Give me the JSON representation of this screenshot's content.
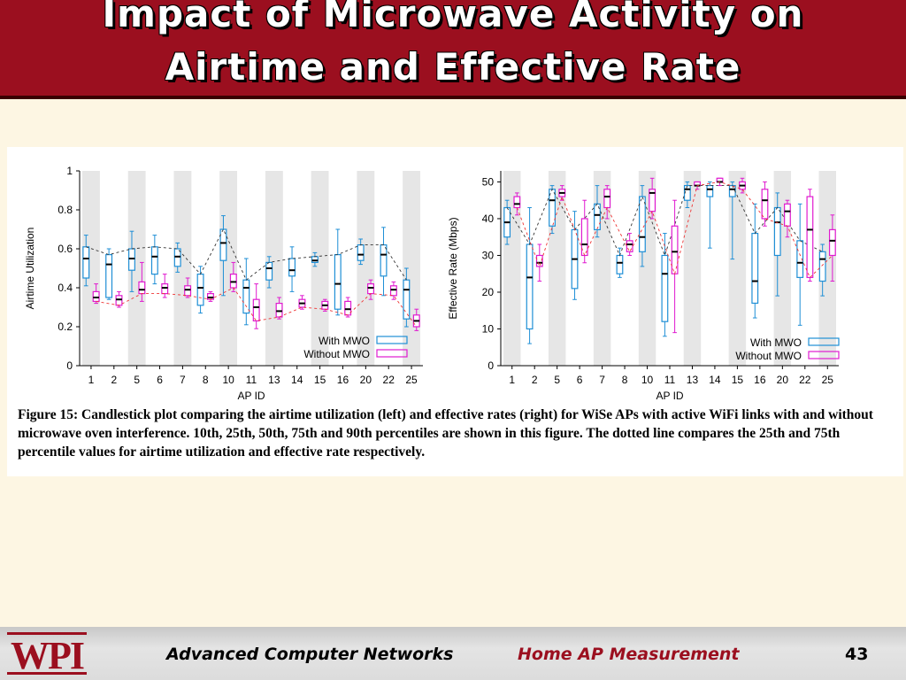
{
  "slide": {
    "title_line1": "Impact of Microwave Activity on",
    "title_line2": "Airtime and Effective Rate",
    "caption": "Figure 15:  Candlestick plot comparing the airtime utilization (left) and effective rates (right) for WiSe APs with active WiFi links with and without microwave oven interference.  10th, 25th, 50th, 75th and 90th percentiles are shown in this figure.  The dotted line compares the 25th and 75th percentile values for airtime utilization and effective rate respectively."
  },
  "footer": {
    "logo": "WPI",
    "course": "Advanced Computer Networks",
    "topic": "Home AP Measurement",
    "page": "43"
  },
  "colors": {
    "header": "#9b0f1f",
    "with": "#1f8fd6",
    "without": "#e01ad0",
    "stripe": "#e6e6e6"
  },
  "chart_data": [
    {
      "type": "candlestick",
      "xlabel": "AP ID",
      "ylabel": "Airtime Utilization",
      "ylim": [
        0,
        1
      ],
      "yticks": [
        "0",
        "0.2",
        "0.4",
        "0.6",
        "0.8",
        "1"
      ],
      "categories": [
        "1",
        "2",
        "5",
        "6",
        "7",
        "8",
        "10",
        "11",
        "13",
        "14",
        "15",
        "16",
        "20",
        "22",
        "25"
      ],
      "legend": [
        "With MWO",
        "Without MWO"
      ],
      "series": [
        {
          "name": "With MWO",
          "stats": [
            [
              0.41,
              0.45,
              0.55,
              0.61,
              0.67
            ],
            [
              0.34,
              0.35,
              0.52,
              0.57,
              0.6
            ],
            [
              0.38,
              0.49,
              0.55,
              0.6,
              0.69
            ],
            [
              0.42,
              0.47,
              0.56,
              0.61,
              0.67
            ],
            [
              0.48,
              0.51,
              0.56,
              0.6,
              0.63
            ],
            [
              0.27,
              0.31,
              0.4,
              0.47,
              0.51
            ],
            [
              0.36,
              0.54,
              0.63,
              0.7,
              0.77
            ],
            [
              0.21,
              0.27,
              0.4,
              0.44,
              0.55
            ],
            [
              0.4,
              0.44,
              0.5,
              0.53,
              0.56
            ],
            [
              0.38,
              0.46,
              0.49,
              0.55,
              0.61
            ],
            [
              0.51,
              0.53,
              0.54,
              0.56,
              0.58
            ],
            [
              0.26,
              0.29,
              0.42,
              0.57,
              0.7
            ],
            [
              0.52,
              0.54,
              0.57,
              0.62,
              0.65
            ],
            [
              0.36,
              0.46,
              0.57,
              0.62,
              0.71
            ],
            [
              0.2,
              0.24,
              0.39,
              0.44,
              0.5
            ]
          ]
        },
        {
          "name": "Without MWO",
          "stats": [
            [
              0.32,
              0.33,
              0.35,
              0.38,
              0.42
            ],
            [
              0.3,
              0.31,
              0.34,
              0.36,
              0.38
            ],
            [
              0.33,
              0.37,
              0.39,
              0.43,
              0.53
            ],
            [
              0.35,
              0.37,
              0.4,
              0.42,
              0.47
            ],
            [
              0.35,
              0.36,
              0.39,
              0.41,
              0.45
            ],
            [
              0.33,
              0.34,
              0.35,
              0.37,
              0.38
            ],
            [
              0.38,
              0.4,
              0.43,
              0.47,
              0.53
            ],
            [
              0.19,
              0.23,
              0.3,
              0.34,
              0.42
            ],
            [
              0.24,
              0.25,
              0.28,
              0.32,
              0.35
            ],
            [
              0.29,
              0.3,
              0.32,
              0.34,
              0.36
            ],
            [
              0.28,
              0.29,
              0.31,
              0.33,
              0.34
            ],
            [
              0.25,
              0.26,
              0.29,
              0.33,
              0.35
            ],
            [
              0.34,
              0.37,
              0.4,
              0.42,
              0.44
            ],
            [
              0.34,
              0.36,
              0.39,
              0.41,
              0.43
            ],
            [
              0.18,
              0.2,
              0.23,
              0.26,
              0.29
            ]
          ]
        }
      ]
    },
    {
      "type": "candlestick",
      "xlabel": "AP ID",
      "ylabel": "Effective Rate (Mbps)",
      "ylim": [
        0,
        53
      ],
      "yticks": [
        "0",
        "10",
        "20",
        "30",
        "40",
        "50"
      ],
      "categories": [
        "1",
        "2",
        "5",
        "6",
        "7",
        "8",
        "10",
        "11",
        "13",
        "14",
        "15",
        "16",
        "20",
        "22",
        "25"
      ],
      "legend": [
        "With MWO",
        "Without MWO"
      ],
      "series": [
        {
          "name": "With MWO",
          "stats": [
            [
              33,
              35,
              39,
              43,
              45
            ],
            [
              6,
              10,
              24,
              33,
              43
            ],
            [
              36,
              38,
              45,
              48,
              49
            ],
            [
              18,
              21,
              29,
              37,
              42
            ],
            [
              35,
              37,
              41,
              44,
              49
            ],
            [
              24,
              25,
              28,
              30,
              32
            ],
            [
              27,
              31,
              35,
              46,
              49
            ],
            [
              8,
              12,
              25,
              30,
              36
            ],
            [
              43,
              45,
              48,
              49,
              50
            ],
            [
              32,
              46,
              48,
              49,
              50
            ],
            [
              29,
              46,
              48,
              49,
              50
            ],
            [
              13,
              17,
              23,
              36,
              44
            ],
            [
              19,
              30,
              39,
              43,
              47
            ],
            [
              11,
              24,
              28,
              34,
              44
            ],
            [
              19,
              23,
              29,
              31,
              33
            ]
          ]
        },
        {
          "name": "Without MWO",
          "stats": [
            [
              41,
              43,
              44,
              46,
              47
            ],
            [
              23,
              27,
              28,
              30,
              33
            ],
            [
              45,
              46,
              47,
              48,
              49
            ],
            [
              28,
              30,
              33,
              40,
              45
            ],
            [
              40,
              43,
              46,
              48,
              49
            ],
            [
              30,
              31,
              33,
              34,
              36
            ],
            [
              40,
              42,
              47,
              48,
              51
            ],
            [
              9,
              25,
              31,
              38,
              45
            ],
            [
              48,
              49,
              49,
              50,
              50
            ],
            [
              49,
              50,
              50,
              51,
              51
            ],
            [
              47,
              48,
              49,
              50,
              51
            ],
            [
              38,
              40,
              45,
              48,
              50
            ],
            [
              35,
              38,
              42,
              44,
              45
            ],
            [
              23,
              24,
              37,
              46,
              48
            ],
            [
              23,
              30,
              34,
              37,
              41
            ]
          ]
        }
      ]
    }
  ]
}
